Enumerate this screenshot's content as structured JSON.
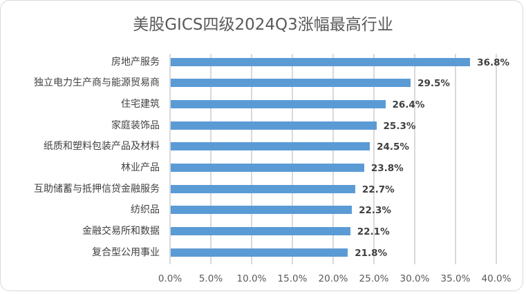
{
  "chart": {
    "title": "美股GICS四级2024Q3涨幅最高行业",
    "bar_color": "#5B9BD5",
    "grid_color": "#D9D9D9",
    "x_ticks": [
      "0.0%",
      "5.0%",
      "10.0%",
      "15.0%",
      "20.0%",
      "25.0%",
      "30.0%",
      "35.0%",
      "40.0%"
    ],
    "rows": [
      {
        "label": "房地产服务",
        "value": 36.8,
        "value_label": "36.8%"
      },
      {
        "label": "独立电力生产商与能源贸易商",
        "value": 29.5,
        "value_label": "29.5%"
      },
      {
        "label": "住宅建筑",
        "value": 26.4,
        "value_label": "26.4%"
      },
      {
        "label": "家庭装饰品",
        "value": 25.3,
        "value_label": "25.3%"
      },
      {
        "label": "纸质和塑料包装产品及材料",
        "value": 24.5,
        "value_label": "24.5%"
      },
      {
        "label": "林业产品",
        "value": 23.8,
        "value_label": "23.8%"
      },
      {
        "label": "互助储蓄与抵押信贷金融服务",
        "value": 22.7,
        "value_label": "22.7%"
      },
      {
        "label": "纺织品",
        "value": 22.3,
        "value_label": "22.3%"
      },
      {
        "label": "金融交易所和数据",
        "value": 22.1,
        "value_label": "22.1%"
      },
      {
        "label": "复合型公用事业",
        "value": 21.8,
        "value_label": "21.8%"
      }
    ]
  },
  "chart_data": {
    "type": "bar",
    "orientation": "horizontal",
    "title": "美股GICS四级2024Q3涨幅最高行业",
    "xlabel": "",
    "ylabel": "",
    "categories": [
      "房地产服务",
      "独立电力生产商与能源贸易商",
      "住宅建筑",
      "家庭装饰品",
      "纸质和塑料包装产品及材料",
      "林业产品",
      "互助储蓄与抵押信贷金融服务",
      "纺织品",
      "金融交易所和数据",
      "复合型公用事业"
    ],
    "values": [
      36.8,
      29.5,
      26.4,
      25.3,
      24.5,
      23.8,
      22.7,
      22.3,
      22.1,
      21.8
    ],
    "value_unit": "%",
    "xlim": [
      0,
      40
    ],
    "x_tick_step": 5,
    "x_tick_labels": [
      "0.0%",
      "5.0%",
      "10.0%",
      "15.0%",
      "20.0%",
      "25.0%",
      "30.0%",
      "35.0%",
      "40.0%"
    ],
    "grid": {
      "vertical": true,
      "horizontal": false
    },
    "data_labels": true,
    "legend": null
  }
}
